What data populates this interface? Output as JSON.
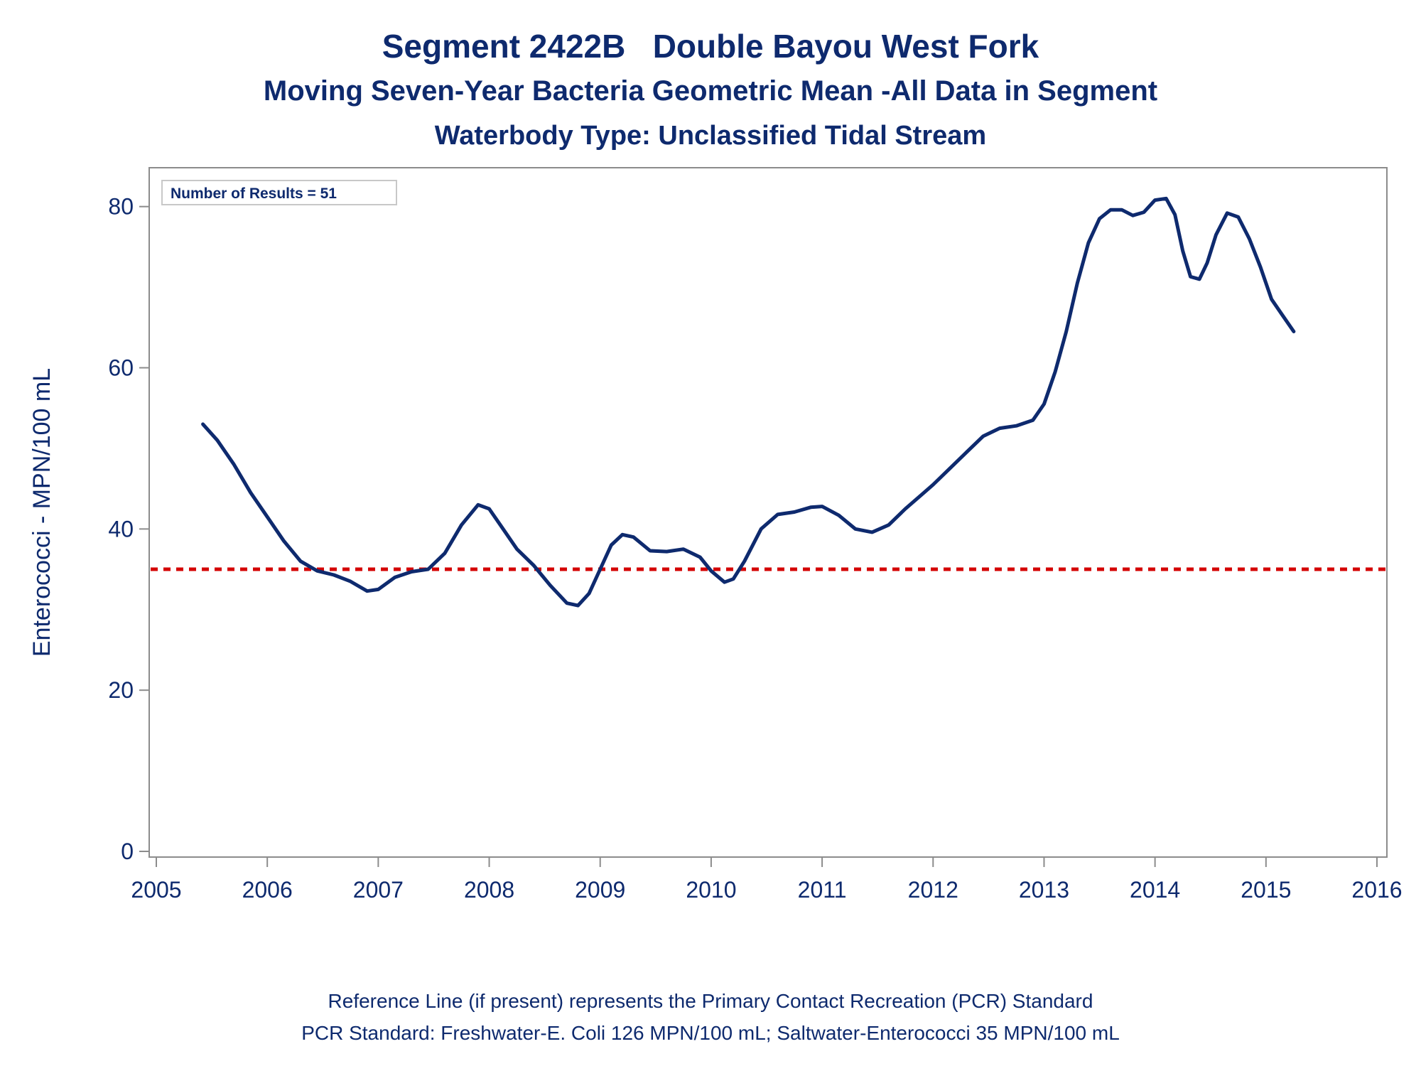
{
  "titles": {
    "line1": "Segment 2422B   Double Bayou West Fork",
    "line2": "Moving Seven-Year Bacteria Geometric Mean -All Data in Segment",
    "line3": "Waterbody Type: Unclassified Tidal Stream"
  },
  "footnotes": {
    "line1": "Reference Line (if present) represents the Primary Contact Recreation (PCR) Standard",
    "line2": "PCR Standard: Freshwater-E. Coli 126 MPN/100 mL; Saltwater-Enterococci 35 MPN/100 mL"
  },
  "colors": {
    "line": "#0e2a6e",
    "reference_line": "#d40000",
    "axis": "#8c8c8c",
    "text": "#0e2a6e"
  },
  "chart_data": {
    "type": "line",
    "ylabel": "Enterococci - MPN/100 mL",
    "xlabel": "",
    "xlim": [
      2005,
      2016
    ],
    "ylim": [
      0,
      82
    ],
    "x_ticks": [
      2005,
      2006,
      2007,
      2008,
      2009,
      2010,
      2011,
      2012,
      2013,
      2014,
      2015,
      2016
    ],
    "y_ticks": [
      0,
      20,
      40,
      60,
      80
    ],
    "annotation": "Number of Results = 51",
    "reference_line": {
      "y": 35,
      "style": "dotted"
    },
    "series": [
      {
        "x": [
          2005.42,
          2005.55,
          2005.7,
          2005.85,
          2006.0,
          2006.15,
          2006.3,
          2006.45,
          2006.6,
          2006.75,
          2006.9,
          2007.0,
          2007.15,
          2007.3,
          2007.45,
          2007.6,
          2007.75,
          2007.9,
          2008.0,
          2008.1,
          2008.25,
          2008.4,
          2008.55,
          2008.7,
          2008.8,
          2008.9,
          2009.0,
          2009.1,
          2009.2,
          2009.3,
          2009.45,
          2009.6,
          2009.75,
          2009.9,
          2010.0,
          2010.12,
          2010.2,
          2010.3,
          2010.45,
          2010.6,
          2010.75,
          2010.9,
          2011.0,
          2011.15,
          2011.3,
          2011.45,
          2011.6,
          2011.75,
          2011.9,
          2012.0,
          2012.15,
          2012.3,
          2012.45,
          2012.6,
          2012.75,
          2012.9,
          2013.0,
          2013.1,
          2013.2,
          2013.3,
          2013.4,
          2013.5,
          2013.6,
          2013.7,
          2013.8,
          2013.9,
          2014.0,
          2014.1,
          2014.18,
          2014.25,
          2014.32,
          2014.4,
          2014.47,
          2014.55,
          2014.65,
          2014.75,
          2014.85,
          2014.95,
          2015.05,
          2015.15,
          2015.25
        ],
        "y": [
          53,
          51,
          48,
          44.5,
          41.5,
          38.5,
          36,
          34.8,
          34.3,
          33.5,
          32.3,
          32.5,
          34,
          34.7,
          35,
          37,
          40.5,
          43,
          42.5,
          40.5,
          37.5,
          35.5,
          33,
          30.8,
          30.5,
          32,
          35,
          38,
          39.3,
          39,
          37.3,
          37.2,
          37.5,
          36.5,
          34.8,
          33.4,
          33.8,
          36,
          40,
          41.8,
          42.1,
          42.7,
          42.8,
          41.7,
          40,
          39.6,
          40.5,
          42.5,
          44.3,
          45.5,
          47.5,
          49.5,
          51.5,
          52.5,
          52.8,
          53.5,
          55.5,
          59.5,
          64.5,
          70.5,
          75.5,
          78.5,
          79.6,
          79.6,
          78.9,
          79.3,
          80.8,
          81,
          79,
          74.5,
          71.3,
          71,
          73,
          76.5,
          79.2,
          78.7,
          76,
          72.5,
          68.5,
          66.5,
          64.5
        ]
      }
    ]
  }
}
